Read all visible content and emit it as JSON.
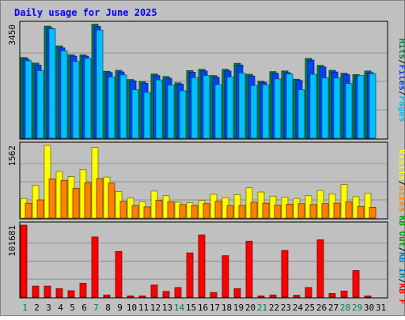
{
  "chart_data": {
    "type": "bar",
    "title": "Daily usage for June 2025",
    "categories": [
      "1",
      "2",
      "3",
      "4",
      "5",
      "6",
      "7",
      "8",
      "9",
      "10",
      "11",
      "12",
      "13",
      "14",
      "15",
      "16",
      "17",
      "18",
      "19",
      "20",
      "21",
      "22",
      "23",
      "24",
      "25",
      "26",
      "27",
      "28",
      "29",
      "30",
      "31"
    ],
    "weekend_days": [
      "1",
      "7",
      "14",
      "21",
      "28",
      "29"
    ],
    "panels": [
      {
        "id": "hits",
        "ymax": 3450,
        "max_label": "3450",
        "legend": [
          {
            "name": "Pages",
            "color": "#00c0ff"
          },
          {
            "name": "Files",
            "color": "#0040ff"
          },
          {
            "name": "Hits",
            "color": "#008040"
          }
        ],
        "series": [
          {
            "name": "Hits",
            "color": "#008040",
            "values": [
              2450,
              2280,
              3400,
              2800,
              2530,
              2530,
              3460,
              2030,
              2060,
              1780,
              1720,
              1950,
              1870,
              1680,
              2050,
              2090,
              1900,
              2090,
              2270,
              1940,
              1730,
              2020,
              2040,
              1790,
              2420,
              2210,
              2060,
              1970,
              1930,
              2040,
              0
            ]
          },
          {
            "name": "Files",
            "color": "#0040ff",
            "values": [
              2400,
              2220,
              3350,
              2740,
              2490,
              2490,
              3390,
              1990,
              2010,
              1740,
              1670,
              1900,
              1820,
              1640,
              2000,
              2040,
              1850,
              2040,
              2220,
              1890,
              1690,
              1970,
              1990,
              1750,
              2370,
              2160,
              2010,
              1930,
              1890,
              1990,
              0
            ]
          },
          {
            "name": "Pages",
            "color": "#00c0ff",
            "values": [
              2350,
              2050,
              3320,
              2650,
              2330,
              2420,
              3280,
              1860,
              1920,
              1470,
              1390,
              1770,
              1610,
              1440,
              1840,
              1900,
              1630,
              1860,
              1980,
              1600,
              1620,
              1800,
              1950,
              1470,
              1940,
              1830,
              1830,
              1660,
              1900,
              1960,
              0
            ]
          }
        ]
      },
      {
        "id": "visits",
        "ymax": 1562,
        "max_label": "1562",
        "legend": [
          {
            "name": "Sites",
            "color": "#ff8000"
          },
          {
            "name": "Visits",
            "color": "#ffff00"
          }
        ],
        "series": [
          {
            "name": "Visits",
            "color": "#ffff00",
            "values": [
              420,
              700,
              1562,
              1000,
              890,
              1040,
              1520,
              880,
              570,
              430,
              350,
              580,
              480,
              340,
              330,
              380,
              510,
              440,
              500,
              650,
              560,
              470,
              450,
              420,
              480,
              590,
              520,
              720,
              460,
              530,
              0
            ]
          },
          {
            "name": "Sites",
            "color": "#ff8000",
            "values": [
              320,
              390,
              840,
              810,
              640,
              760,
              850,
              750,
              360,
              270,
              240,
              380,
              350,
              290,
              270,
              310,
              360,
              270,
              270,
              340,
              320,
              280,
              300,
              310,
              290,
              310,
              320,
              350,
              250,
              230,
              0
            ]
          }
        ]
      },
      {
        "id": "kbytes",
        "ymax": 101681,
        "max_label": "101681",
        "legend": [
          {
            "name": "KB F",
            "color": "#ff0000"
          },
          {
            "name": "KB In",
            "color": "#0080c0"
          },
          {
            "name": "KB Out",
            "color": "#00a000"
          }
        ],
        "series": [
          {
            "name": "KB F",
            "color": "#ff0000",
            "values": [
              101681,
              15500,
              15500,
              12000,
              9000,
              19500,
              85000,
              3000,
              64500,
              1500,
              1500,
              17000,
              8000,
              13500,
              62500,
              88000,
              6500,
              58500,
              12000,
              79000,
              1500,
              3000,
              66000,
              2500,
              13500,
              81000,
              5000,
              8500,
              37500,
              1500,
              0
            ]
          }
        ]
      }
    ]
  }
}
